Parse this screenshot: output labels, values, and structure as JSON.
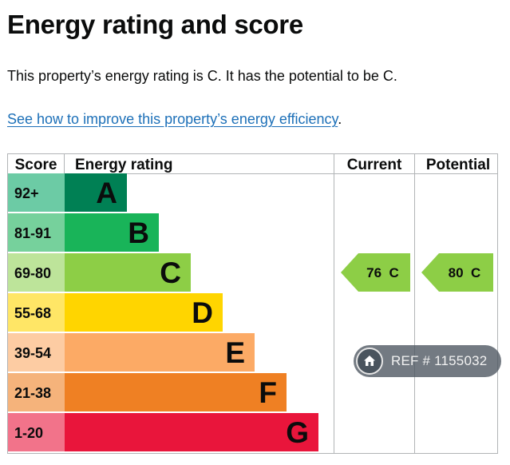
{
  "heading": "Energy rating and score",
  "summary": "This property’s energy rating is C. It has the potential to be C.",
  "improve_link": "See how to improve this property’s energy efficiency",
  "improve_link_suffix": ".",
  "watermark": {
    "text": "REF # 1155032",
    "icon": "home-icon"
  },
  "chart_data": {
    "type": "table",
    "columns": [
      "Score",
      "Energy rating",
      "Current",
      "Potential"
    ],
    "bands": [
      {
        "score": "92+",
        "letter": "A",
        "color": "#008054",
        "score_color": "#6ccba5"
      },
      {
        "score": "81-91",
        "letter": "B",
        "color": "#19b459",
        "score_color": "#76d19c"
      },
      {
        "score": "69-80",
        "letter": "C",
        "color": "#8dce46",
        "score_color": "#bde49a"
      },
      {
        "score": "55-68",
        "letter": "D",
        "color": "#ffd500",
        "score_color": "#ffe666"
      },
      {
        "score": "39-54",
        "letter": "E",
        "color": "#fcaa65",
        "score_color": "#fdcca3"
      },
      {
        "score": "21-38",
        "letter": "F",
        "color": "#ef8023",
        "score_color": "#f5b37b"
      },
      {
        "score": "1-20",
        "letter": "G",
        "color": "#e9153b",
        "score_color": "#f2738a"
      }
    ],
    "current": {
      "value": 76,
      "letter": "C",
      "label": "76  C",
      "color": "#8dce46"
    },
    "potential": {
      "value": 80,
      "letter": "C",
      "label": "80  C",
      "color": "#8dce46"
    }
  }
}
